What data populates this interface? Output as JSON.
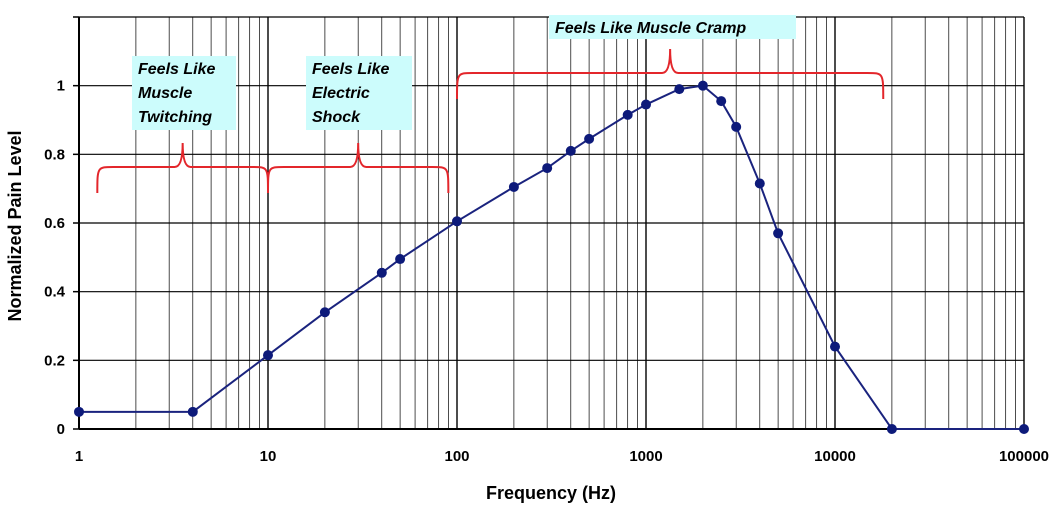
{
  "chart_data": {
    "type": "line",
    "title": "",
    "xlabel": "Frequency (Hz)",
    "ylabel": "Normalized Pain Level",
    "xscale": "log",
    "xlim": [
      1,
      100000
    ],
    "ylim": [
      0,
      1.2
    ],
    "grid": true,
    "legend": "none",
    "x_tick_labels": [
      "1",
      "10",
      "100",
      "1000",
      "10000",
      "100000"
    ],
    "y_tick_labels": [
      "0",
      "0.2",
      "0.4",
      "0.6",
      "0.8",
      "1"
    ],
    "series": [
      {
        "color": "#1a237e",
        "points": [
          {
            "x": 1,
            "y": 0.05
          },
          {
            "x": 4,
            "y": 0.05
          },
          {
            "x": 10,
            "y": 0.215
          },
          {
            "x": 20,
            "y": 0.34
          },
          {
            "x": 40,
            "y": 0.455
          },
          {
            "x": 50,
            "y": 0.495
          },
          {
            "x": 100,
            "y": 0.605
          },
          {
            "x": 200,
            "y": 0.705
          },
          {
            "x": 300,
            "y": 0.76
          },
          {
            "x": 400,
            "y": 0.81
          },
          {
            "x": 500,
            "y": 0.845
          },
          {
            "x": 800,
            "y": 0.915
          },
          {
            "x": 1000,
            "y": 0.945
          },
          {
            "x": 1500,
            "y": 0.99
          },
          {
            "x": 2000,
            "y": 1.0
          },
          {
            "x": 2500,
            "y": 0.955
          },
          {
            "x": 3000,
            "y": 0.88
          },
          {
            "x": 4000,
            "y": 0.715
          },
          {
            "x": 5000,
            "y": 0.57
          },
          {
            "x": 10000,
            "y": 0.24
          },
          {
            "x": 20000,
            "y": 0.0
          },
          {
            "x": 100000,
            "y": 0.0
          }
        ]
      }
    ],
    "annotations": [
      {
        "lines": [
          "Feels Like",
          "Muscle",
          "Twitching"
        ],
        "range_x": [
          1.25,
          10
        ]
      },
      {
        "lines": [
          "Feels Like",
          "Electric",
          "Shock"
        ],
        "range_x": [
          10,
          90
        ]
      },
      {
        "lines": [
          "Feels Like Muscle Cramp"
        ],
        "range_x": [
          100,
          18000
        ]
      }
    ],
    "colors": {
      "line": "#1a237e",
      "marker": "#0d1a7a",
      "bracket": "#e3262b",
      "label_box": "#ccfcfc",
      "grid": "#000000"
    }
  }
}
